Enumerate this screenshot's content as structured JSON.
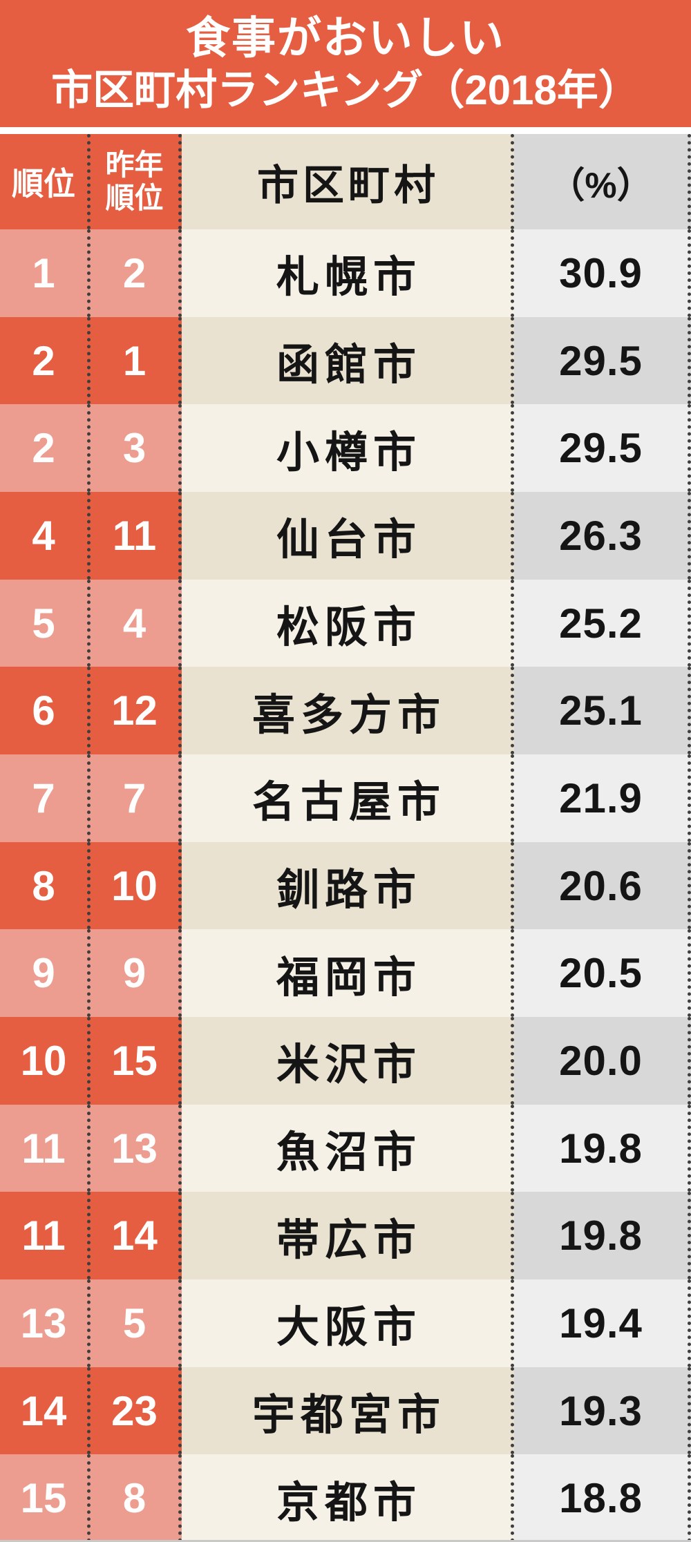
{
  "title": {
    "line1": "食事がおいしい",
    "line2": "市区町村ランキング（2018年）"
  },
  "table": {
    "headers": {
      "rank": "順位",
      "prev_line1": "昨年",
      "prev_line2": "順位",
      "city": "市区町村",
      "percent": "（%）"
    },
    "rows": [
      {
        "rank": "1",
        "prev": "2",
        "city": "札幌市",
        "pct": "30.9"
      },
      {
        "rank": "2",
        "prev": "1",
        "city": "函館市",
        "pct": "29.5"
      },
      {
        "rank": "2",
        "prev": "3",
        "city": "小樽市",
        "pct": "29.5"
      },
      {
        "rank": "4",
        "prev": "11",
        "city": "仙台市",
        "pct": "26.3"
      },
      {
        "rank": "5",
        "prev": "4",
        "city": "松阪市",
        "pct": "25.2"
      },
      {
        "rank": "6",
        "prev": "12",
        "city": "喜多方市",
        "pct": "25.1"
      },
      {
        "rank": "7",
        "prev": "7",
        "city": "名古屋市",
        "pct": "21.9"
      },
      {
        "rank": "8",
        "prev": "10",
        "city": "釧路市",
        "pct": "20.6"
      },
      {
        "rank": "9",
        "prev": "9",
        "city": "福岡市",
        "pct": "20.5"
      },
      {
        "rank": "10",
        "prev": "15",
        "city": "米沢市",
        "pct": "20.0"
      },
      {
        "rank": "11",
        "prev": "13",
        "city": "魚沼市",
        "pct": "19.8"
      },
      {
        "rank": "11",
        "prev": "14",
        "city": "帯広市",
        "pct": "19.8"
      },
      {
        "rank": "13",
        "prev": "5",
        "city": "大阪市",
        "pct": "19.4"
      },
      {
        "rank": "14",
        "prev": "23",
        "city": "宇都宮市",
        "pct": "19.3"
      },
      {
        "rank": "15",
        "prev": "8",
        "city": "京都市",
        "pct": "18.8"
      }
    ]
  },
  "colors": {
    "red": "#E55E41",
    "salmon": "#EC9D8F",
    "beige": "#E9E2D0",
    "cream": "#F5F1E7",
    "gray-dark": "#D8D8D8",
    "gray-light": "#EEEEEE",
    "dot": "#3E3E3E",
    "ink": "#151515",
    "white": "#FFFFFF"
  },
  "chart_data": {
    "type": "table",
    "title": "食事がおいしい市区町村ランキング（2018年）",
    "columns": [
      "順位",
      "昨年順位",
      "市区町村",
      "（%）"
    ],
    "rows": [
      [
        1,
        2,
        "札幌市",
        30.9
      ],
      [
        2,
        1,
        "函館市",
        29.5
      ],
      [
        2,
        3,
        "小樽市",
        29.5
      ],
      [
        4,
        11,
        "仙台市",
        26.3
      ],
      [
        5,
        4,
        "松阪市",
        25.2
      ],
      [
        6,
        12,
        "喜多方市",
        25.1
      ],
      [
        7,
        7,
        "名古屋市",
        21.9
      ],
      [
        8,
        10,
        "釧路市",
        20.6
      ],
      [
        9,
        9,
        "福岡市",
        20.5
      ],
      [
        10,
        15,
        "米沢市",
        20.0
      ],
      [
        11,
        13,
        "魚沼市",
        19.8
      ],
      [
        11,
        14,
        "帯広市",
        19.8
      ],
      [
        13,
        5,
        "大阪市",
        19.4
      ],
      [
        14,
        23,
        "宇都宮市",
        19.3
      ],
      [
        15,
        8,
        "京都市",
        18.8
      ]
    ]
  }
}
